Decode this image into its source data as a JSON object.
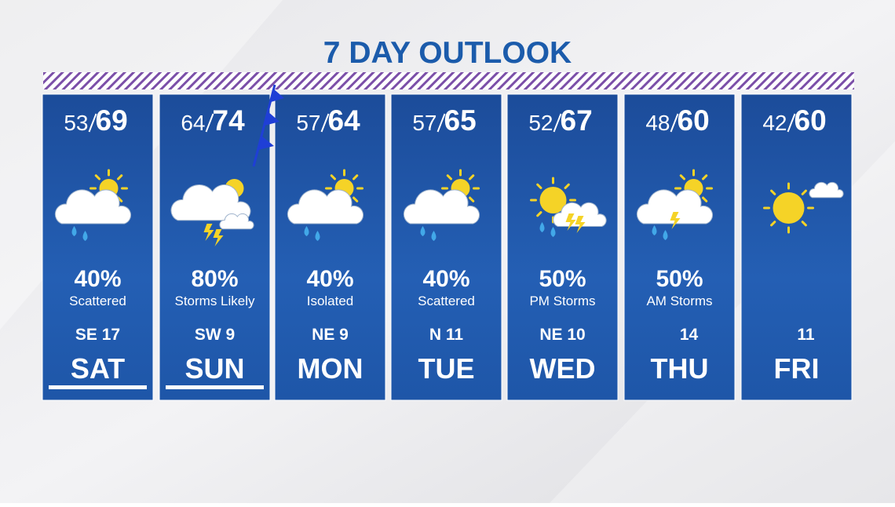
{
  "title": "7 DAY OUTLOOK",
  "days": [
    {
      "low": "53",
      "high": "69",
      "precip": "40%",
      "description": "Scattered",
      "wind": "SE 17",
      "day": "SAT"
    },
    {
      "low": "64",
      "high": "74",
      "precip": "80%",
      "description": "Storms Likely",
      "wind": "SW 9",
      "day": "SUN"
    },
    {
      "low": "57",
      "high": "64",
      "precip": "40%",
      "description": "Isolated",
      "wind": "NE 9",
      "day": "MON"
    },
    {
      "low": "57",
      "high": "65",
      "precip": "40%",
      "description": "Scattered",
      "wind": "N 11",
      "day": "TUE"
    },
    {
      "low": "52",
      "high": "67",
      "precip": "50%",
      "description": "PM Storms",
      "wind": "NE 10",
      "day": "WED"
    },
    {
      "low": "48",
      "high": "60",
      "precip": "50%",
      "description": "AM Storms",
      "wind": "14",
      "day": "THU"
    },
    {
      "low": "42",
      "high": "60",
      "wind": "11",
      "day": "FRI"
    }
  ]
}
